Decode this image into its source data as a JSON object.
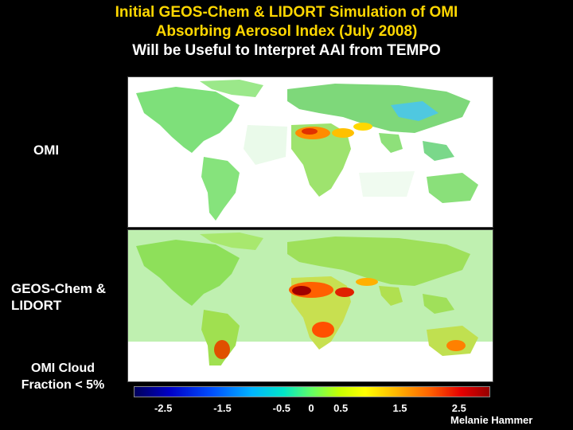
{
  "title": {
    "line1": "Initial GEOS-Chem & LIDORT Simulation of OMI",
    "line2": "Absorbing Aerosol Index (July 2008)",
    "line3": "Will be Useful to Interpret AAI from TEMPO"
  },
  "panels": {
    "omi_label": "OMI",
    "geos_label_line1": "GEOS-Chem &",
    "geos_label_line2": "LIDORT",
    "cloud_label_line1": "OMI Cloud",
    "cloud_label_line2": "Fraction < 5%"
  },
  "colorbar": {
    "ticks": [
      "-2.5",
      "-1.5",
      "-0.5",
      "0",
      "0.5",
      "1.5",
      "2.5"
    ],
    "tick_values": [
      -2.5,
      -1.5,
      -0.5,
      0,
      0.5,
      1.5,
      2.5
    ],
    "min": -3.0,
    "max": 3.0,
    "colors": [
      "#00005a",
      "#0000c8",
      "#0050ff",
      "#00b4ff",
      "#00e6c8",
      "#64ff64",
      "#c8ff00",
      "#ffff00",
      "#ffb400",
      "#ff6400",
      "#e60000",
      "#960000"
    ]
  },
  "credit": "Melanie Hammer"
}
